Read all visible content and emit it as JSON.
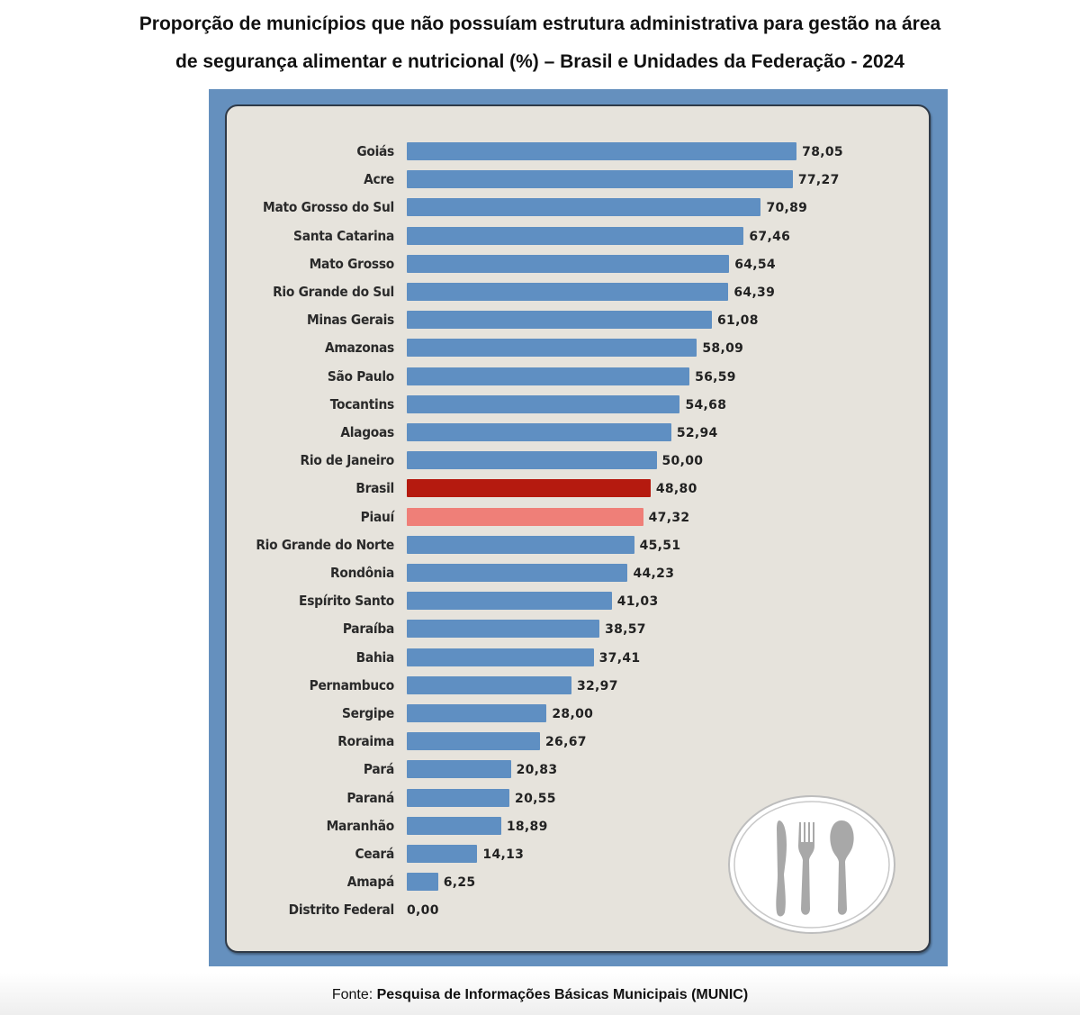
{
  "chart_data": {
    "type": "bar",
    "orientation": "horizontal",
    "title": "Proporção de municípios que não possuíam estrutura administrativa para gestão na área de segurança alimentar e nutricional (%) – Brasil e Unidades da Federação - 2024",
    "title_lines": [
      "Proporção de municípios que não possuíam estrutura administrativa para gestão na área",
      "de segurança alimentar e nutricional (%) – Brasil e Unidades da Federação - 2024"
    ],
    "xlabel": "",
    "ylabel": "",
    "xlim": [
      0,
      80
    ],
    "grid": false,
    "categories": [
      "Goiás",
      "Acre",
      "Mato Grosso do Sul",
      "Santa Catarina",
      "Mato Grosso",
      "Rio Grande do Sul",
      "Minas Gerais",
      "Amazonas",
      "São Paulo",
      "Tocantins",
      "Alagoas",
      "Rio de Janeiro",
      "Brasil",
      "Piauí",
      "Rio Grande do Norte",
      "Rondônia",
      "Espírito Santo",
      "Paraíba",
      "Bahia",
      "Pernambuco",
      "Sergipe",
      "Roraima",
      "Pará",
      "Paraná",
      "Maranhão",
      "Ceará",
      "Amapá",
      "Distrito Federal"
    ],
    "values": [
      78.05,
      77.27,
      70.89,
      67.46,
      64.54,
      64.39,
      61.08,
      58.09,
      56.59,
      54.68,
      52.94,
      50.0,
      48.8,
      47.32,
      45.51,
      44.23,
      41.03,
      38.57,
      37.41,
      32.97,
      28.0,
      26.67,
      20.83,
      20.55,
      18.89,
      14.13,
      6.25,
      0.0
    ],
    "value_labels": [
      "78,05",
      "77,27",
      "70,89",
      "67,46",
      "64,54",
      "64,39",
      "61,08",
      "58,09",
      "56,59",
      "54,68",
      "52,94",
      "50,00",
      "48,80",
      "47,32",
      "45,51",
      "44,23",
      "41,03",
      "38,57",
      "37,41",
      "32,97",
      "28,00",
      "26,67",
      "20,83",
      "20,55",
      "18,89",
      "14,13",
      "6,25",
      "0,00"
    ],
    "highlights": {
      "Brasil": "#b51a0f",
      "Piauí": "#ef7f78"
    },
    "default_color": "#5f8fc2"
  },
  "decoration": {
    "icon": "plate-cutlery-icon"
  },
  "colors": {
    "frame": "#6590be",
    "panel": "#e6e3dc"
  },
  "source": {
    "label": "Fonte:",
    "text": "Pesquisa de Informações Básicas Municipais (MUNIC)"
  }
}
